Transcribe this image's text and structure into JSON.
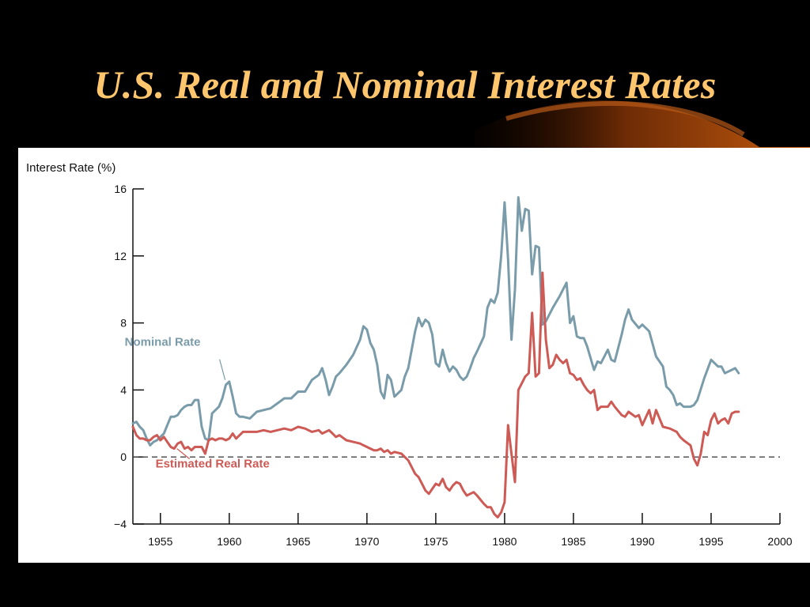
{
  "slide": {
    "title": "U.S. Real and Nominal Interest Rates"
  },
  "colors": {
    "background": "#000000",
    "title": "#ffc66e",
    "nominal": "#7a9caa",
    "real": "#cd5a55",
    "zero_line": "#444444"
  },
  "chart_data": {
    "type": "line",
    "title": "",
    "xlabel": "",
    "ylabel": "Interest Rate (%)",
    "xlim": [
      1953,
      2000
    ],
    "ylim": [
      -4,
      16
    ],
    "x_ticks": [
      1955,
      1960,
      1965,
      1970,
      1975,
      1980,
      1985,
      1990,
      1995,
      2000
    ],
    "y_ticks": [
      -4,
      0,
      4,
      8,
      12,
      16
    ],
    "reference_line": {
      "y": 0,
      "style": "dashed"
    },
    "series": [
      {
        "name": "Nominal Rate",
        "color": "#7a9caa",
        "points": [
          [
            1953.0,
            2.0
          ],
          [
            1953.25,
            2.1
          ],
          [
            1953.5,
            1.8
          ],
          [
            1953.75,
            1.6
          ],
          [
            1954.0,
            1.1
          ],
          [
            1954.25,
            0.7
          ],
          [
            1954.5,
            0.9
          ],
          [
            1954.75,
            1.0
          ],
          [
            1955.0,
            1.2
          ],
          [
            1955.25,
            1.4
          ],
          [
            1955.5,
            1.9
          ],
          [
            1955.75,
            2.4
          ],
          [
            1956.0,
            2.4
          ],
          [
            1956.25,
            2.5
          ],
          [
            1956.5,
            2.8
          ],
          [
            1956.75,
            3.0
          ],
          [
            1957.0,
            3.1
          ],
          [
            1957.25,
            3.1
          ],
          [
            1957.5,
            3.4
          ],
          [
            1957.75,
            3.4
          ],
          [
            1958.0,
            1.8
          ],
          [
            1958.25,
            1.1
          ],
          [
            1958.5,
            1.0
          ],
          [
            1958.75,
            2.6
          ],
          [
            1959.0,
            2.8
          ],
          [
            1959.25,
            3.0
          ],
          [
            1959.5,
            3.5
          ],
          [
            1959.75,
            4.3
          ],
          [
            1960.0,
            4.5
          ],
          [
            1960.25,
            3.6
          ],
          [
            1960.5,
            2.6
          ],
          [
            1960.75,
            2.4
          ],
          [
            1961.0,
            2.4
          ],
          [
            1961.5,
            2.3
          ],
          [
            1962.0,
            2.7
          ],
          [
            1962.5,
            2.8
          ],
          [
            1963.0,
            2.9
          ],
          [
            1963.5,
            3.2
          ],
          [
            1964.0,
            3.5
          ],
          [
            1964.5,
            3.5
          ],
          [
            1965.0,
            3.9
          ],
          [
            1965.5,
            3.9
          ],
          [
            1966.0,
            4.6
          ],
          [
            1966.5,
            4.9
          ],
          [
            1966.75,
            5.3
          ],
          [
            1967.0,
            4.6
          ],
          [
            1967.25,
            3.7
          ],
          [
            1967.5,
            4.2
          ],
          [
            1967.75,
            4.8
          ],
          [
            1968.0,
            5.0
          ],
          [
            1968.5,
            5.5
          ],
          [
            1969.0,
            6.1
          ],
          [
            1969.5,
            7.0
          ],
          [
            1969.75,
            7.8
          ],
          [
            1970.0,
            7.6
          ],
          [
            1970.25,
            6.8
          ],
          [
            1970.5,
            6.4
          ],
          [
            1970.75,
            5.5
          ],
          [
            1971.0,
            3.9
          ],
          [
            1971.25,
            3.5
          ],
          [
            1971.5,
            4.9
          ],
          [
            1971.75,
            4.6
          ],
          [
            1972.0,
            3.6
          ],
          [
            1972.5,
            4.0
          ],
          [
            1972.75,
            4.8
          ],
          [
            1973.0,
            5.3
          ],
          [
            1973.5,
            7.5
          ],
          [
            1973.75,
            8.3
          ],
          [
            1974.0,
            7.8
          ],
          [
            1974.25,
            8.2
          ],
          [
            1974.5,
            8.0
          ],
          [
            1974.75,
            7.3
          ],
          [
            1975.0,
            5.6
          ],
          [
            1975.25,
            5.4
          ],
          [
            1975.5,
            6.4
          ],
          [
            1975.75,
            5.6
          ],
          [
            1976.0,
            5.1
          ],
          [
            1976.25,
            5.4
          ],
          [
            1976.5,
            5.2
          ],
          [
            1976.75,
            4.8
          ],
          [
            1977.0,
            4.6
          ],
          [
            1977.25,
            4.8
          ],
          [
            1977.5,
            5.3
          ],
          [
            1977.75,
            5.9
          ],
          [
            1978.0,
            6.3
          ],
          [
            1978.5,
            7.2
          ],
          [
            1978.75,
            8.9
          ],
          [
            1979.0,
            9.4
          ],
          [
            1979.25,
            9.2
          ],
          [
            1979.5,
            9.8
          ],
          [
            1979.75,
            12.0
          ],
          [
            1980.0,
            15.2
          ],
          [
            1980.25,
            11.8
          ],
          [
            1980.5,
            7.0
          ],
          [
            1980.75,
            10.0
          ],
          [
            1981.0,
            15.5
          ],
          [
            1981.25,
            13.5
          ],
          [
            1981.5,
            14.8
          ],
          [
            1981.75,
            14.7
          ],
          [
            1982.0,
            10.9
          ],
          [
            1982.25,
            12.6
          ],
          [
            1982.5,
            12.5
          ],
          [
            1982.75,
            7.9
          ],
          [
            1983.0,
            8.1
          ],
          [
            1983.5,
            8.9
          ],
          [
            1984.0,
            9.6
          ],
          [
            1984.5,
            10.4
          ],
          [
            1984.75,
            8.0
          ],
          [
            1985.0,
            8.4
          ],
          [
            1985.25,
            7.2
          ],
          [
            1985.5,
            7.1
          ],
          [
            1985.75,
            7.1
          ],
          [
            1986.0,
            6.6
          ],
          [
            1986.5,
            5.2
          ],
          [
            1986.75,
            5.7
          ],
          [
            1987.0,
            5.6
          ],
          [
            1987.5,
            6.4
          ],
          [
            1987.75,
            5.8
          ],
          [
            1988.0,
            5.7
          ],
          [
            1988.5,
            7.3
          ],
          [
            1988.75,
            8.2
          ],
          [
            1989.0,
            8.8
          ],
          [
            1989.25,
            8.2
          ],
          [
            1989.75,
            7.7
          ],
          [
            1990.0,
            7.9
          ],
          [
            1990.5,
            7.5
          ],
          [
            1991.0,
            6.0
          ],
          [
            1991.5,
            5.4
          ],
          [
            1991.75,
            4.2
          ],
          [
            1992.0,
            4.0
          ],
          [
            1992.25,
            3.7
          ],
          [
            1992.5,
            3.1
          ],
          [
            1992.75,
            3.2
          ],
          [
            1993.0,
            3.0
          ],
          [
            1993.5,
            3.0
          ],
          [
            1993.75,
            3.1
          ],
          [
            1994.0,
            3.4
          ],
          [
            1994.5,
            4.7
          ],
          [
            1995.0,
            5.8
          ],
          [
            1995.5,
            5.4
          ],
          [
            1995.75,
            5.4
          ],
          [
            1996.0,
            5.0
          ],
          [
            1996.5,
            5.2
          ],
          [
            1996.75,
            5.3
          ],
          [
            1997.0,
            5.0
          ]
        ]
      },
      {
        "name": "Estimated Real Rate",
        "color": "#cd5a55",
        "points": [
          [
            1953.0,
            1.8
          ],
          [
            1953.25,
            1.3
          ],
          [
            1953.5,
            1.1
          ],
          [
            1953.75,
            1.1
          ],
          [
            1954.0,
            1.0
          ],
          [
            1954.25,
            1.0
          ],
          [
            1954.5,
            1.2
          ],
          [
            1954.75,
            1.3
          ],
          [
            1955.0,
            1.0
          ],
          [
            1955.25,
            1.2
          ],
          [
            1955.5,
            0.9
          ],
          [
            1955.75,
            0.6
          ],
          [
            1956.0,
            0.5
          ],
          [
            1956.25,
            0.8
          ],
          [
            1956.5,
            0.9
          ],
          [
            1956.75,
            0.5
          ],
          [
            1957.0,
            0.6
          ],
          [
            1957.25,
            0.4
          ],
          [
            1957.5,
            0.6
          ],
          [
            1957.75,
            0.6
          ],
          [
            1958.0,
            0.6
          ],
          [
            1958.25,
            0.2
          ],
          [
            1958.5,
            1.0
          ],
          [
            1958.75,
            1.1
          ],
          [
            1959.0,
            1.0
          ],
          [
            1959.25,
            1.1
          ],
          [
            1959.5,
            1.1
          ],
          [
            1959.75,
            1.0
          ],
          [
            1960.0,
            1.1
          ],
          [
            1960.25,
            1.4
          ],
          [
            1960.5,
            1.1
          ],
          [
            1960.75,
            1.3
          ],
          [
            1961.0,
            1.5
          ],
          [
            1961.5,
            1.5
          ],
          [
            1962.0,
            1.5
          ],
          [
            1962.5,
            1.6
          ],
          [
            1963.0,
            1.5
          ],
          [
            1963.5,
            1.6
          ],
          [
            1964.0,
            1.7
          ],
          [
            1964.5,
            1.6
          ],
          [
            1965.0,
            1.8
          ],
          [
            1965.5,
            1.7
          ],
          [
            1965.75,
            1.6
          ],
          [
            1966.0,
            1.5
          ],
          [
            1966.5,
            1.6
          ],
          [
            1966.75,
            1.4
          ],
          [
            1967.0,
            1.5
          ],
          [
            1967.25,
            1.6
          ],
          [
            1967.5,
            1.4
          ],
          [
            1967.75,
            1.2
          ],
          [
            1968.0,
            1.3
          ],
          [
            1968.5,
            1.0
          ],
          [
            1969.0,
            0.9
          ],
          [
            1969.5,
            0.8
          ],
          [
            1969.75,
            0.7
          ],
          [
            1970.0,
            0.6
          ],
          [
            1970.25,
            0.5
          ],
          [
            1970.5,
            0.4
          ],
          [
            1970.75,
            0.4
          ],
          [
            1971.0,
            0.5
          ],
          [
            1971.25,
            0.3
          ],
          [
            1971.5,
            0.4
          ],
          [
            1971.75,
            0.2
          ],
          [
            1972.0,
            0.3
          ],
          [
            1972.5,
            0.2
          ],
          [
            1972.75,
            0.0
          ],
          [
            1973.0,
            -0.2
          ],
          [
            1973.5,
            -1.0
          ],
          [
            1973.75,
            -1.2
          ],
          [
            1974.0,
            -1.6
          ],
          [
            1974.25,
            -2.0
          ],
          [
            1974.5,
            -2.2
          ],
          [
            1974.75,
            -1.9
          ],
          [
            1975.0,
            -1.6
          ],
          [
            1975.25,
            -1.7
          ],
          [
            1975.5,
            -1.3
          ],
          [
            1975.75,
            -1.8
          ],
          [
            1976.0,
            -2.0
          ],
          [
            1976.25,
            -1.7
          ],
          [
            1976.5,
            -1.5
          ],
          [
            1976.75,
            -1.6
          ],
          [
            1977.0,
            -2.0
          ],
          [
            1977.25,
            -2.3
          ],
          [
            1977.5,
            -2.2
          ],
          [
            1977.75,
            -2.1
          ],
          [
            1978.0,
            -2.3
          ],
          [
            1978.5,
            -2.8
          ],
          [
            1978.75,
            -3.0
          ],
          [
            1979.0,
            -3.0
          ],
          [
            1979.25,
            -3.4
          ],
          [
            1979.5,
            -3.6
          ],
          [
            1979.75,
            -3.3
          ],
          [
            1980.0,
            -2.7
          ],
          [
            1980.25,
            1.9
          ],
          [
            1980.5,
            0.2
          ],
          [
            1980.75,
            -1.5
          ],
          [
            1981.0,
            4.0
          ],
          [
            1981.25,
            4.4
          ],
          [
            1981.5,
            4.8
          ],
          [
            1981.75,
            5.0
          ],
          [
            1982.0,
            8.6
          ],
          [
            1982.25,
            4.8
          ],
          [
            1982.5,
            5.0
          ],
          [
            1982.75,
            11.0
          ],
          [
            1983.0,
            7.0
          ],
          [
            1983.25,
            5.3
          ],
          [
            1983.5,
            5.5
          ],
          [
            1983.75,
            6.1
          ],
          [
            1984.0,
            5.8
          ],
          [
            1984.25,
            5.6
          ],
          [
            1984.5,
            5.8
          ],
          [
            1984.75,
            5.0
          ],
          [
            1985.0,
            4.9
          ],
          [
            1985.25,
            4.6
          ],
          [
            1985.5,
            4.7
          ],
          [
            1985.75,
            4.3
          ],
          [
            1986.0,
            4.0
          ],
          [
            1986.25,
            3.8
          ],
          [
            1986.5,
            4.0
          ],
          [
            1986.75,
            2.8
          ],
          [
            1987.0,
            3.0
          ],
          [
            1987.5,
            3.0
          ],
          [
            1987.75,
            3.3
          ],
          [
            1988.0,
            3.0
          ],
          [
            1988.5,
            2.5
          ],
          [
            1988.75,
            2.4
          ],
          [
            1989.0,
            2.7
          ],
          [
            1989.5,
            2.4
          ],
          [
            1989.75,
            2.5
          ],
          [
            1990.0,
            1.9
          ],
          [
            1990.5,
            2.8
          ],
          [
            1990.75,
            2.0
          ],
          [
            1991.0,
            2.8
          ],
          [
            1991.5,
            1.8
          ],
          [
            1992.0,
            1.7
          ],
          [
            1992.5,
            1.5
          ],
          [
            1992.75,
            1.2
          ],
          [
            1993.0,
            1.0
          ],
          [
            1993.5,
            0.7
          ],
          [
            1993.75,
            -0.1
          ],
          [
            1994.0,
            -0.5
          ],
          [
            1994.25,
            0.2
          ],
          [
            1994.5,
            1.5
          ],
          [
            1994.75,
            1.3
          ],
          [
            1995.0,
            2.2
          ],
          [
            1995.25,
            2.6
          ],
          [
            1995.5,
            2.0
          ],
          [
            1995.75,
            2.2
          ],
          [
            1996.0,
            2.3
          ],
          [
            1996.25,
            2.0
          ],
          [
            1996.5,
            2.6
          ],
          [
            1996.75,
            2.7
          ],
          [
            1997.0,
            2.7
          ]
        ]
      }
    ],
    "annotations": [
      {
        "text": "Nominal Rate",
        "series": "Nominal Rate",
        "points_to": [
          1959.7,
          4.6
        ]
      },
      {
        "text": "Estimated Real Rate",
        "series": "Estimated Real Rate",
        "points_to": [
          1956.2,
          0.5
        ]
      }
    ]
  }
}
